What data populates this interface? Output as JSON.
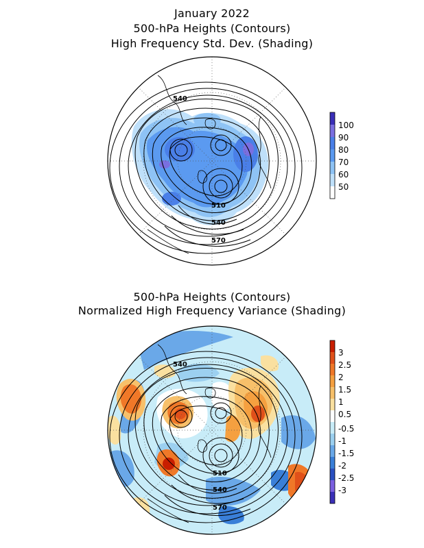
{
  "titles": {
    "top_line1": "January 2022",
    "top_line2": "500-hPa Heights (Contours)",
    "top_line3": "High Frequency Std. Dev. (Shading)",
    "bottom_line1": "500-hPa Heights (Contours)",
    "bottom_line2": "Normalized High Frequency Variance (Shading)"
  },
  "top_map": {
    "contour_labels": [
      "540",
      "510",
      "540",
      "570"
    ],
    "colorbar": {
      "labels": [
        "100",
        "90",
        "80",
        "70",
        "60",
        "50"
      ],
      "colors": [
        "#3a2fb8",
        "#7a6fe0",
        "#4a7fe8",
        "#5b9af0",
        "#8ec3f5",
        "#bfe0fa",
        "#ffffff"
      ]
    }
  },
  "bottom_map": {
    "contour_labels": [
      "540",
      "510",
      "540",
      "570"
    ],
    "colorbar": {
      "labels": [
        "3",
        "2.5",
        "2",
        "1.5",
        "1",
        "0.5",
        "-0.5",
        "-1",
        "-1.5",
        "-2",
        "-2.5",
        "-3"
      ],
      "colors": [
        "#c81e00",
        "#e0501a",
        "#f07828",
        "#f5a040",
        "#f7c06a",
        "#fae0a0",
        "#ffffff",
        "#c8ecf8",
        "#9cd0f0",
        "#6aa8e8",
        "#3a7fd8",
        "#2a4fc0",
        "#7a5fe0",
        "#3a2fb8"
      ]
    }
  }
}
